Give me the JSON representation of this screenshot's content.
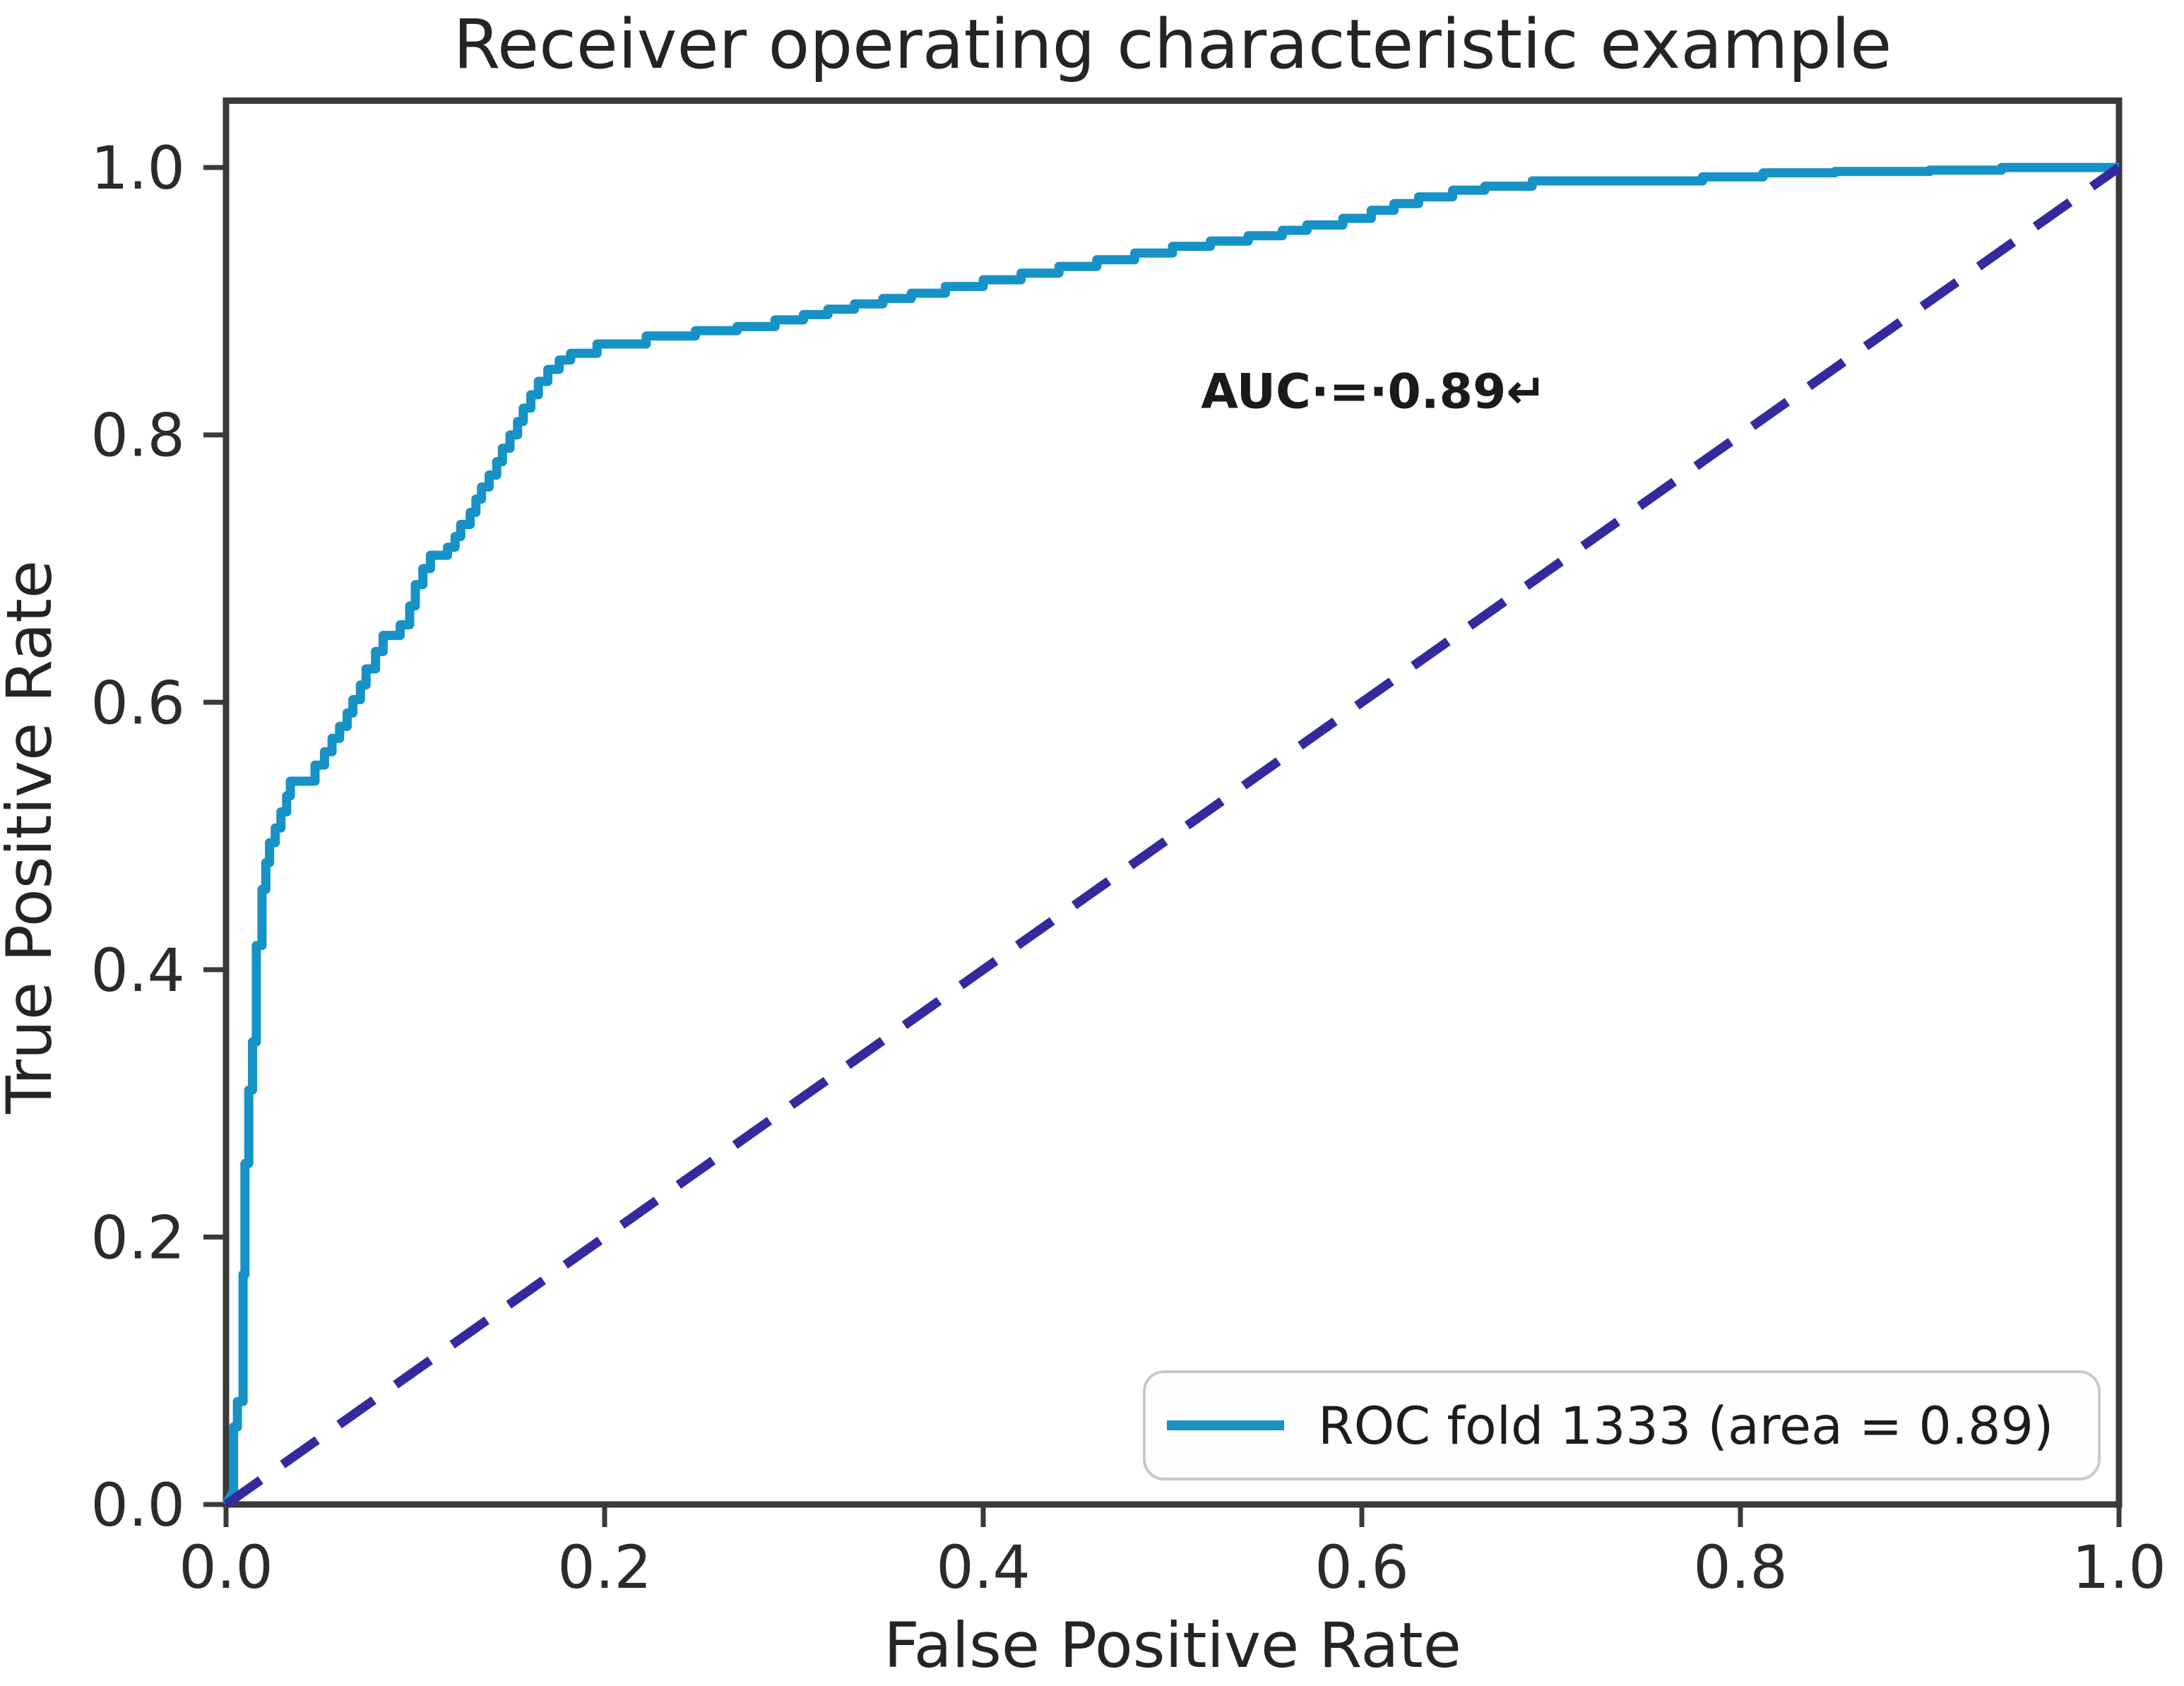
{
  "title": "Receiver operating characteristic example",
  "axes": {
    "xlabel": "False Positive Rate",
    "ylabel": "True Positive Rate"
  },
  "annotation": {
    "text": "AUC·=·0.89↵"
  },
  "legend": {
    "position": "lower right",
    "items": [
      {
        "label": "ROC fold 1333 (area = 0.89)",
        "color": "#1692c6"
      }
    ]
  },
  "colors": {
    "roc_curve": "#1692c6",
    "chance_line": "#342a9e",
    "spine": "#3a3a3a",
    "text": "#242424",
    "background": "#ffffff"
  },
  "chart_data": {
    "type": "line",
    "title": "Receiver operating characteristic example",
    "xlabel": "False Positive Rate",
    "ylabel": "True Positive Rate",
    "xlim": [
      0.0,
      1.0
    ],
    "ylim": [
      0.0,
      1.05
    ],
    "grid": false,
    "legend_position": "lower right",
    "x_ticks": [
      0.0,
      0.2,
      0.4,
      0.6,
      0.8,
      1.0
    ],
    "y_ticks": [
      0.0,
      0.2,
      0.4,
      0.6,
      0.8,
      1.0
    ],
    "x_tick_labels": [
      "0.0",
      "0.2",
      "0.4",
      "0.6",
      "0.8",
      "1.0"
    ],
    "y_tick_labels": [
      "0.0",
      "0.2",
      "0.4",
      "0.6",
      "0.8",
      "1.0"
    ],
    "annotations": [
      {
        "text": "AUC·=·0.89↵",
        "x": 0.515,
        "y": 0.833,
        "bold": true
      }
    ],
    "series": [
      {
        "name": "ROC fold 1333 (area = 0.89)",
        "color": "#1692c6",
        "line_style": "solid",
        "line_width": 13,
        "auc": 0.89,
        "points": [
          [
            0.0,
            0.0
          ],
          [
            0.004,
            0.01
          ],
          [
            0.004,
            0.058
          ],
          [
            0.006,
            0.058
          ],
          [
            0.006,
            0.077
          ],
          [
            0.009,
            0.077
          ],
          [
            0.009,
            0.172
          ],
          [
            0.01,
            0.172
          ],
          [
            0.01,
            0.255
          ],
          [
            0.012,
            0.255
          ],
          [
            0.012,
            0.31
          ],
          [
            0.014,
            0.31
          ],
          [
            0.014,
            0.346
          ],
          [
            0.016,
            0.346
          ],
          [
            0.016,
            0.418
          ],
          [
            0.019,
            0.418
          ],
          [
            0.019,
            0.46
          ],
          [
            0.021,
            0.46
          ],
          [
            0.021,
            0.48
          ],
          [
            0.023,
            0.48
          ],
          [
            0.023,
            0.495
          ],
          [
            0.026,
            0.495
          ],
          [
            0.026,
            0.506
          ],
          [
            0.029,
            0.506
          ],
          [
            0.029,
            0.518
          ],
          [
            0.032,
            0.518
          ],
          [
            0.032,
            0.53
          ],
          [
            0.034,
            0.53
          ],
          [
            0.034,
            0.541
          ],
          [
            0.047,
            0.541
          ],
          [
            0.047,
            0.553
          ],
          [
            0.052,
            0.553
          ],
          [
            0.052,
            0.563
          ],
          [
            0.056,
            0.563
          ],
          [
            0.056,
            0.573
          ],
          [
            0.06,
            0.573
          ],
          [
            0.06,
            0.582
          ],
          [
            0.064,
            0.582
          ],
          [
            0.064,
            0.592
          ],
          [
            0.067,
            0.592
          ],
          [
            0.067,
            0.602
          ],
          [
            0.071,
            0.602
          ],
          [
            0.071,
            0.613
          ],
          [
            0.074,
            0.613
          ],
          [
            0.074,
            0.625
          ],
          [
            0.079,
            0.625
          ],
          [
            0.079,
            0.638
          ],
          [
            0.083,
            0.638
          ],
          [
            0.083,
            0.65
          ],
          [
            0.092,
            0.65
          ],
          [
            0.092,
            0.658
          ],
          [
            0.097,
            0.658
          ],
          [
            0.097,
            0.672
          ],
          [
            0.1,
            0.672
          ],
          [
            0.1,
            0.688
          ],
          [
            0.104,
            0.688
          ],
          [
            0.104,
            0.7
          ],
          [
            0.108,
            0.7
          ],
          [
            0.108,
            0.71
          ],
          [
            0.117,
            0.71
          ],
          [
            0.117,
            0.716
          ],
          [
            0.121,
            0.716
          ],
          [
            0.121,
            0.724
          ],
          [
            0.124,
            0.724
          ],
          [
            0.124,
            0.733
          ],
          [
            0.129,
            0.733
          ],
          [
            0.129,
            0.742
          ],
          [
            0.132,
            0.742
          ],
          [
            0.132,
            0.752
          ],
          [
            0.135,
            0.752
          ],
          [
            0.135,
            0.761
          ],
          [
            0.139,
            0.761
          ],
          [
            0.139,
            0.77
          ],
          [
            0.143,
            0.77
          ],
          [
            0.143,
            0.78
          ],
          [
            0.146,
            0.78
          ],
          [
            0.146,
            0.79
          ],
          [
            0.15,
            0.79
          ],
          [
            0.15,
            0.8
          ],
          [
            0.154,
            0.8
          ],
          [
            0.154,
            0.81
          ],
          [
            0.157,
            0.81
          ],
          [
            0.157,
            0.82
          ],
          [
            0.161,
            0.82
          ],
          [
            0.161,
            0.83
          ],
          [
            0.165,
            0.83
          ],
          [
            0.165,
            0.84
          ],
          [
            0.17,
            0.84
          ],
          [
            0.17,
            0.849
          ],
          [
            0.176,
            0.849
          ],
          [
            0.176,
            0.856
          ],
          [
            0.182,
            0.856
          ],
          [
            0.182,
            0.861
          ],
          [
            0.196,
            0.861
          ],
          [
            0.196,
            0.868
          ],
          [
            0.222,
            0.868
          ],
          [
            0.222,
            0.874
          ],
          [
            0.248,
            0.874
          ],
          [
            0.248,
            0.878
          ],
          [
            0.27,
            0.878
          ],
          [
            0.27,
            0.881
          ],
          [
            0.29,
            0.881
          ],
          [
            0.29,
            0.886
          ],
          [
            0.305,
            0.886
          ],
          [
            0.305,
            0.89
          ],
          [
            0.318,
            0.89
          ],
          [
            0.318,
            0.894
          ],
          [
            0.332,
            0.894
          ],
          [
            0.332,
            0.898
          ],
          [
            0.347,
            0.898
          ],
          [
            0.347,
            0.902
          ],
          [
            0.362,
            0.902
          ],
          [
            0.362,
            0.906
          ],
          [
            0.38,
            0.906
          ],
          [
            0.38,
            0.911
          ],
          [
            0.4,
            0.911
          ],
          [
            0.4,
            0.916
          ],
          [
            0.42,
            0.916
          ],
          [
            0.42,
            0.921
          ],
          [
            0.44,
            0.921
          ],
          [
            0.44,
            0.926
          ],
          [
            0.46,
            0.926
          ],
          [
            0.46,
            0.931
          ],
          [
            0.48,
            0.931
          ],
          [
            0.48,
            0.936
          ],
          [
            0.5,
            0.936
          ],
          [
            0.5,
            0.941
          ],
          [
            0.52,
            0.941
          ],
          [
            0.52,
            0.945
          ],
          [
            0.54,
            0.945
          ],
          [
            0.54,
            0.949
          ],
          [
            0.558,
            0.949
          ],
          [
            0.558,
            0.953
          ],
          [
            0.571,
            0.953
          ],
          [
            0.571,
            0.957
          ],
          [
            0.59,
            0.957
          ],
          [
            0.59,
            0.962
          ],
          [
            0.605,
            0.962
          ],
          [
            0.605,
            0.968
          ],
          [
            0.617,
            0.968
          ],
          [
            0.617,
            0.973
          ],
          [
            0.63,
            0.973
          ],
          [
            0.63,
            0.978
          ],
          [
            0.648,
            0.978
          ],
          [
            0.648,
            0.983
          ],
          [
            0.665,
            0.983
          ],
          [
            0.665,
            0.986
          ],
          [
            0.69,
            0.986
          ],
          [
            0.69,
            0.99
          ],
          [
            0.78,
            0.99
          ],
          [
            0.78,
            0.993
          ],
          [
            0.812,
            0.993
          ],
          [
            0.812,
            0.996
          ],
          [
            0.85,
            0.996
          ],
          [
            0.85,
            0.997
          ],
          [
            0.9,
            0.997
          ],
          [
            0.9,
            0.998
          ],
          [
            0.938,
            0.998
          ],
          [
            0.938,
            1.0
          ],
          [
            1.0,
            1.0
          ]
        ]
      },
      {
        "name": "chance diagonal",
        "color": "#342a9e",
        "line_style": "dashed",
        "line_width": 13,
        "points": [
          [
            0.0,
            0.0
          ],
          [
            1.0,
            1.0
          ]
        ]
      }
    ]
  }
}
